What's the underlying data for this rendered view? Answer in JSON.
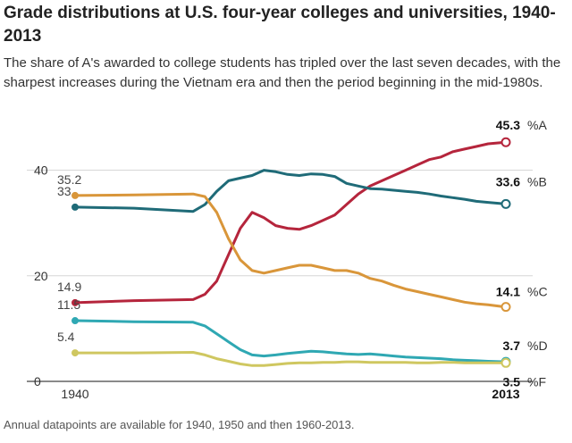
{
  "header": {
    "title": "Grade distributions at U.S. four-year colleges and universities, 1940-2013",
    "subtitle": "The share of A's awarded to college students has tripled over the last seven decades, with the sharpest increases during the Vietnam era and then the period beginning in the mid-1980s."
  },
  "footnote": "Annual datapoints are available for 1940, 1950 and then 1960-2013.",
  "chart_data": {
    "type": "line",
    "xlim": [
      1940,
      2013
    ],
    "ylim": [
      0,
      45
    ],
    "x_ticks": [
      {
        "value": 1940,
        "label": "1940",
        "bold": false
      },
      {
        "value": 2013,
        "label": "2013",
        "bold": true
      }
    ],
    "y_ticks": [
      {
        "value": 0,
        "label": "0"
      },
      {
        "value": 20,
        "label": "20"
      },
      {
        "value": 40,
        "label": "40"
      }
    ],
    "grid": true,
    "series": [
      {
        "name": "%A",
        "color": "#b5253c",
        "start_label": "14.9",
        "end_label": "45.3",
        "points": [
          [
            1940,
            14.9
          ],
          [
            1950,
            15.3
          ],
          [
            1960,
            15.5
          ],
          [
            1962,
            16.5
          ],
          [
            1964,
            19
          ],
          [
            1966,
            24
          ],
          [
            1968,
            29
          ],
          [
            1970,
            32
          ],
          [
            1972,
            31
          ],
          [
            1974,
            29.5
          ],
          [
            1976,
            29
          ],
          [
            1978,
            28.8
          ],
          [
            1980,
            29.5
          ],
          [
            1982,
            30.5
          ],
          [
            1984,
            31.5
          ],
          [
            1986,
            33.5
          ],
          [
            1988,
            35.5
          ],
          [
            1990,
            37
          ],
          [
            1992,
            38
          ],
          [
            1994,
            39
          ],
          [
            1996,
            40
          ],
          [
            1998,
            41
          ],
          [
            2000,
            42
          ],
          [
            2002,
            42.5
          ],
          [
            2004,
            43.5
          ],
          [
            2006,
            44
          ],
          [
            2008,
            44.5
          ],
          [
            2010,
            45
          ],
          [
            2013,
            45.3
          ]
        ]
      },
      {
        "name": "%B",
        "color": "#1f6b78",
        "start_label": "33",
        "end_label": "33.6",
        "points": [
          [
            1940,
            33
          ],
          [
            1950,
            32.8
          ],
          [
            1960,
            32.2
          ],
          [
            1962,
            33.5
          ],
          [
            1964,
            36
          ],
          [
            1966,
            38
          ],
          [
            1968,
            38.5
          ],
          [
            1970,
            39
          ],
          [
            1972,
            40
          ],
          [
            1974,
            39.7
          ],
          [
            1976,
            39.2
          ],
          [
            1978,
            39
          ],
          [
            1980,
            39.3
          ],
          [
            1982,
            39.2
          ],
          [
            1984,
            38.8
          ],
          [
            1986,
            37.5
          ],
          [
            1988,
            37
          ],
          [
            1990,
            36.5
          ],
          [
            1992,
            36.4
          ],
          [
            1994,
            36.2
          ],
          [
            1996,
            36
          ],
          [
            1998,
            35.8
          ],
          [
            2000,
            35.5
          ],
          [
            2002,
            35.1
          ],
          [
            2004,
            34.8
          ],
          [
            2006,
            34.5
          ],
          [
            2008,
            34.1
          ],
          [
            2010,
            33.9
          ],
          [
            2013,
            33.6
          ]
        ]
      },
      {
        "name": "%C",
        "color": "#d9963a",
        "start_label": "35.2",
        "end_label": "14.1",
        "points": [
          [
            1940,
            35.2
          ],
          [
            1950,
            35.3
          ],
          [
            1960,
            35.5
          ],
          [
            1962,
            35
          ],
          [
            1964,
            32
          ],
          [
            1966,
            27
          ],
          [
            1968,
            23
          ],
          [
            1970,
            21
          ],
          [
            1972,
            20.5
          ],
          [
            1974,
            21
          ],
          [
            1976,
            21.5
          ],
          [
            1978,
            22
          ],
          [
            1980,
            22
          ],
          [
            1982,
            21.5
          ],
          [
            1984,
            21
          ],
          [
            1986,
            21
          ],
          [
            1988,
            20.5
          ],
          [
            1990,
            19.5
          ],
          [
            1992,
            19
          ],
          [
            1994,
            18.2
          ],
          [
            1996,
            17.5
          ],
          [
            1998,
            17
          ],
          [
            2000,
            16.5
          ],
          [
            2002,
            16
          ],
          [
            2004,
            15.5
          ],
          [
            2006,
            15
          ],
          [
            2008,
            14.7
          ],
          [
            2010,
            14.5
          ],
          [
            2013,
            14.1
          ]
        ]
      },
      {
        "name": "%D",
        "color": "#2fa8b3",
        "start_label": "11.5",
        "end_label": "3.7",
        "points": [
          [
            1940,
            11.5
          ],
          [
            1950,
            11.3
          ],
          [
            1960,
            11.2
          ],
          [
            1962,
            10.5
          ],
          [
            1964,
            9
          ],
          [
            1966,
            7.5
          ],
          [
            1968,
            6
          ],
          [
            1970,
            5
          ],
          [
            1972,
            4.8
          ],
          [
            1974,
            5
          ],
          [
            1976,
            5.3
          ],
          [
            1978,
            5.5
          ],
          [
            1980,
            5.7
          ],
          [
            1982,
            5.6
          ],
          [
            1984,
            5.4
          ],
          [
            1986,
            5.2
          ],
          [
            1988,
            5.1
          ],
          [
            1990,
            5.2
          ],
          [
            1992,
            5
          ],
          [
            1994,
            4.8
          ],
          [
            1996,
            4.6
          ],
          [
            1998,
            4.5
          ],
          [
            2000,
            4.4
          ],
          [
            2002,
            4.3
          ],
          [
            2004,
            4.1
          ],
          [
            2006,
            4
          ],
          [
            2008,
            3.9
          ],
          [
            2010,
            3.8
          ],
          [
            2013,
            3.7
          ]
        ]
      },
      {
        "name": "%F",
        "color": "#cfc760",
        "start_label": "5.4",
        "end_label": "3.5",
        "points": [
          [
            1940,
            5.4
          ],
          [
            1950,
            5.4
          ],
          [
            1960,
            5.5
          ],
          [
            1962,
            5
          ],
          [
            1964,
            4.3
          ],
          [
            1966,
            3.8
          ],
          [
            1968,
            3.3
          ],
          [
            1970,
            3
          ],
          [
            1972,
            3
          ],
          [
            1974,
            3.2
          ],
          [
            1976,
            3.4
          ],
          [
            1978,
            3.5
          ],
          [
            1980,
            3.5
          ],
          [
            1982,
            3.6
          ],
          [
            1984,
            3.6
          ],
          [
            1986,
            3.7
          ],
          [
            1988,
            3.7
          ],
          [
            1990,
            3.6
          ],
          [
            1992,
            3.6
          ],
          [
            1994,
            3.6
          ],
          [
            1996,
            3.6
          ],
          [
            1998,
            3.5
          ],
          [
            2000,
            3.5
          ],
          [
            2002,
            3.6
          ],
          [
            2004,
            3.6
          ],
          [
            2006,
            3.5
          ],
          [
            2008,
            3.5
          ],
          [
            2010,
            3.5
          ],
          [
            2013,
            3.5
          ]
        ]
      }
    ]
  }
}
